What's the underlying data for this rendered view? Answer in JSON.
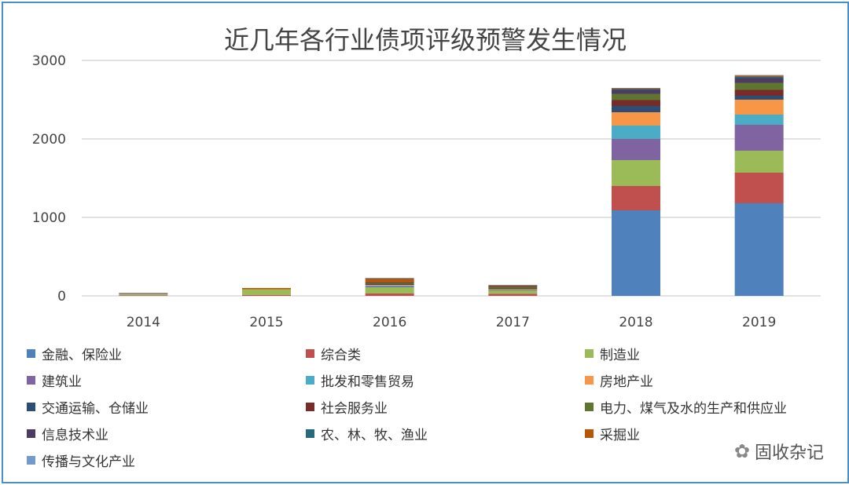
{
  "chart_data": {
    "type": "bar",
    "stacked": true,
    "title": "近几年各行业债项评级预警发生情况",
    "xlabel": "",
    "ylabel": "",
    "ylim": [
      0,
      3000
    ],
    "yticks": [
      "0",
      "1000",
      "2000",
      "3000"
    ],
    "categories": [
      "2014",
      "2015",
      "2016",
      "2017",
      "2018",
      "2019"
    ],
    "legend_position": "bottom",
    "series": [
      {
        "name": "金融、保险业",
        "color": "#4f81bd",
        "values": [
          0,
          0,
          0,
          0,
          1090,
          1180
        ]
      },
      {
        "name": "综合类",
        "color": "#c0504d",
        "values": [
          5,
          10,
          30,
          25,
          310,
          390
        ]
      },
      {
        "name": "制造业",
        "color": "#9bbb59",
        "values": [
          10,
          70,
          80,
          40,
          330,
          280
        ]
      },
      {
        "name": "建筑业",
        "color": "#8064a2",
        "values": [
          2,
          0,
          10,
          5,
          270,
          330
        ]
      },
      {
        "name": "批发和零售贸易",
        "color": "#4bacc6",
        "values": [
          2,
          0,
          10,
          5,
          170,
          130
        ]
      },
      {
        "name": "房地产业",
        "color": "#f79646",
        "values": [
          3,
          5,
          10,
          10,
          170,
          190
        ]
      },
      {
        "name": "交通运输、仓储业",
        "color": "#2c4d75",
        "values": [
          2,
          0,
          5,
          5,
          80,
          50
        ]
      },
      {
        "name": "社会服务业",
        "color": "#772c2a",
        "values": [
          2,
          0,
          5,
          5,
          75,
          75
        ]
      },
      {
        "name": "电力、煤气及水的生产和供应业",
        "color": "#5f7530",
        "values": [
          3,
          0,
          10,
          15,
          80,
          90
        ]
      },
      {
        "name": "信息技术业",
        "color": "#4d3b62",
        "values": [
          2,
          0,
          5,
          5,
          50,
          60
        ]
      },
      {
        "name": "农、林、牧、渔业",
        "color": "#276a7c",
        "values": [
          2,
          0,
          5,
          5,
          10,
          15
        ]
      },
      {
        "name": "采掘业",
        "color": "#b65708",
        "values": [
          5,
          15,
          50,
          15,
          10,
          15
        ]
      },
      {
        "name": "传播与文化产业",
        "color": "#729aca",
        "values": [
          2,
          0,
          10,
          5,
          5,
          10
        ]
      }
    ]
  },
  "watermark": "固收杂记"
}
